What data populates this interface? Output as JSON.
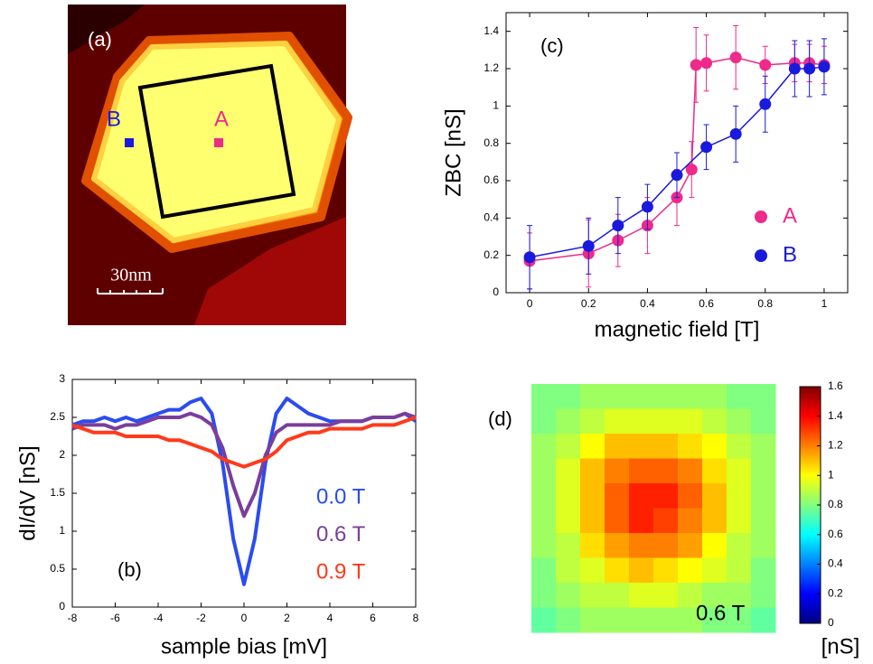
{
  "image_a": {
    "label": "(a)",
    "point_a": "A",
    "point_b": "B",
    "scale_bar": "30nm"
  },
  "chart_data": [
    {
      "type": "line",
      "panel_label": "(c)",
      "xlabel": "magnetic field [T]",
      "ylabel": "ZBC [nS]",
      "xlim": [
        -0.08,
        1.08
      ],
      "xticks": [
        0,
        0.2,
        0.4,
        0.6,
        0.8,
        1
      ],
      "ylim": [
        0,
        1.5
      ],
      "yticks": [
        0,
        0.2,
        0.4,
        0.6,
        0.8,
        1,
        1.2,
        1.4
      ],
      "markers": true,
      "legend": "lower right",
      "series": [
        {
          "name": "A",
          "color": "#ee2a8a",
          "x": [
            0,
            0.2,
            0.3,
            0.4,
            0.5,
            0.55,
            0.565,
            0.6,
            0.7,
            0.8,
            0.9,
            0.95,
            1
          ],
          "values": [
            0.17,
            0.21,
            0.28,
            0.36,
            0.51,
            0.66,
            1.22,
            1.23,
            1.26,
            1.22,
            1.23,
            1.23,
            1.22
          ],
          "errors": [
            0.15,
            0.18,
            0.14,
            0.15,
            0.15,
            0.15,
            0.2,
            0.15,
            0.17,
            0.1,
            0.1,
            0.1,
            0.1
          ]
        },
        {
          "name": "B",
          "color": "#1a1adc",
          "x": [
            0,
            0.2,
            0.3,
            0.4,
            0.5,
            0.6,
            0.7,
            0.8,
            0.9,
            0.95,
            1
          ],
          "values": [
            0.19,
            0.25,
            0.36,
            0.46,
            0.63,
            0.78,
            0.85,
            1.01,
            1.2,
            1.2,
            1.21
          ],
          "errors": [
            0.17,
            0.15,
            0.15,
            0.12,
            0.12,
            0.12,
            0.15,
            0.15,
            0.15,
            0.15,
            0.15
          ]
        }
      ]
    },
    {
      "type": "line",
      "panel_label": "(b)",
      "xlabel": "sample bias [mV]",
      "ylabel": "dI/dV [nS]",
      "xlim": [
        -8,
        8
      ],
      "xticks": [
        -8,
        -6,
        -4,
        -2,
        0,
        2,
        4,
        6,
        8
      ],
      "ylim": [
        0,
        3
      ],
      "yticks": [
        0,
        0.5,
        1,
        1.5,
        2,
        2.5,
        3
      ],
      "markers": false,
      "legend": "lower right",
      "x": [
        -8,
        -7.5,
        -7,
        -6.5,
        -6,
        -5.5,
        -5,
        -4.5,
        -4,
        -3.5,
        -3,
        -2.5,
        -2,
        -1.5,
        -1,
        -0.5,
        0,
        0.5,
        1,
        1.5,
        2,
        2.5,
        3,
        3.5,
        4,
        4.5,
        5,
        5.5,
        6,
        6.5,
        7,
        7.5,
        8
      ],
      "series": [
        {
          "name": "0.0 T",
          "color": "#2a4cf0",
          "values": [
            2.4,
            2.45,
            2.45,
            2.5,
            2.45,
            2.5,
            2.45,
            2.5,
            2.55,
            2.6,
            2.6,
            2.7,
            2.75,
            2.55,
            1.9,
            0.9,
            0.3,
            0.9,
            1.9,
            2.55,
            2.75,
            2.65,
            2.55,
            2.5,
            2.45,
            2.45,
            2.45,
            2.45,
            2.5,
            2.5,
            2.5,
            2.55,
            2.45
          ]
        },
        {
          "name": "0.6 T",
          "color": "#7a3e9c",
          "values": [
            2.35,
            2.4,
            2.4,
            2.4,
            2.35,
            2.4,
            2.4,
            2.45,
            2.5,
            2.5,
            2.5,
            2.55,
            2.5,
            2.4,
            2.1,
            1.6,
            1.2,
            1.5,
            2.0,
            2.3,
            2.4,
            2.4,
            2.4,
            2.4,
            2.4,
            2.45,
            2.45,
            2.45,
            2.5,
            2.5,
            2.5,
            2.55,
            2.5
          ]
        },
        {
          "name": "0.9 T",
          "color": "#ff3a1a",
          "values": [
            2.4,
            2.35,
            2.3,
            2.3,
            2.3,
            2.25,
            2.25,
            2.25,
            2.25,
            2.2,
            2.2,
            2.15,
            2.1,
            2.05,
            1.95,
            1.9,
            1.85,
            1.9,
            1.95,
            2.05,
            2.2,
            2.25,
            2.3,
            2.3,
            2.35,
            2.35,
            2.35,
            2.35,
            2.4,
            2.4,
            2.4,
            2.45,
            2.5
          ]
        }
      ]
    },
    {
      "type": "heatmap",
      "panel_label": "(d)",
      "annotation": "0.6 T",
      "clabel": "[nS]",
      "clim": [
        0,
        1.6
      ],
      "cticks": [
        0,
        0.2,
        0.4,
        0.6,
        0.8,
        1,
        1.2,
        1.4,
        1.6
      ],
      "colormap": "jet",
      "z": [
        [
          0.8,
          0.8,
          0.85,
          0.85,
          0.85,
          0.85,
          0.85,
          0.85,
          0.8,
          0.8
        ],
        [
          0.8,
          0.85,
          0.9,
          0.95,
          0.95,
          0.95,
          0.95,
          0.9,
          0.85,
          0.8
        ],
        [
          0.85,
          0.9,
          1.0,
          1.1,
          1.1,
          1.1,
          1.05,
          1.0,
          0.9,
          0.85
        ],
        [
          0.85,
          0.95,
          1.1,
          1.2,
          1.25,
          1.25,
          1.2,
          1.05,
          0.95,
          0.85
        ],
        [
          0.85,
          0.95,
          1.1,
          1.25,
          1.35,
          1.35,
          1.25,
          1.1,
          0.95,
          0.85
        ],
        [
          0.85,
          0.95,
          1.1,
          1.25,
          1.35,
          1.3,
          1.2,
          1.1,
          0.95,
          0.85
        ],
        [
          0.85,
          0.9,
          1.05,
          1.15,
          1.2,
          1.2,
          1.15,
          1.0,
          0.9,
          0.85
        ],
        [
          0.8,
          0.9,
          0.95,
          1.05,
          1.1,
          1.05,
          1.0,
          0.95,
          0.9,
          0.8
        ],
        [
          0.8,
          0.85,
          0.9,
          0.9,
          0.95,
          0.95,
          0.9,
          0.85,
          0.85,
          0.8
        ],
        [
          0.75,
          0.8,
          0.85,
          0.85,
          0.85,
          0.85,
          0.85,
          0.8,
          0.8,
          0.75
        ]
      ]
    }
  ]
}
